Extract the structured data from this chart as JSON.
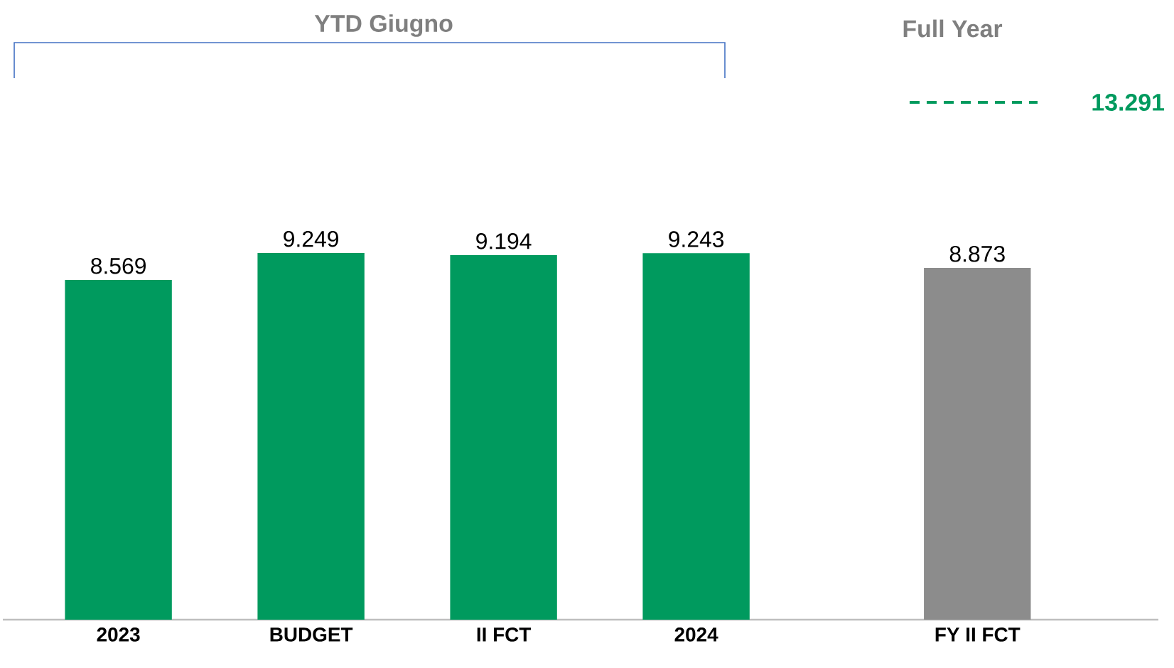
{
  "chart_data": {
    "type": "bar",
    "categories": [
      "2023",
      "BUDGET",
      "II FCT",
      "2024",
      "FY II FCT"
    ],
    "values": [
      8569,
      9249,
      9194,
      9243,
      8873
    ],
    "value_labels": [
      "8.569",
      "9.249",
      "9.194",
      "9.243",
      "8.873"
    ],
    "colors": [
      "#009a5e",
      "#009a5e",
      "#009a5e",
      "#009a5e",
      "#8c8c8c"
    ],
    "annotations": [
      "YTD Giugno",
      "Full Year",
      "13.291"
    ]
  }
}
